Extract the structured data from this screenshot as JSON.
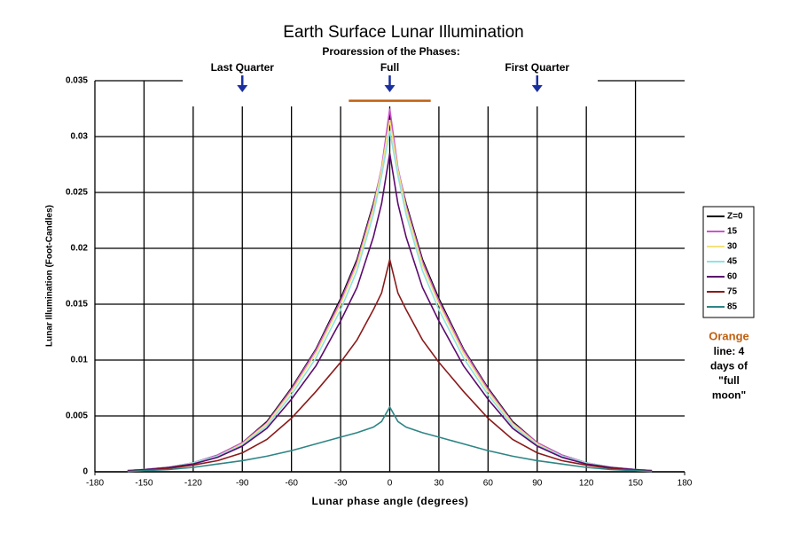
{
  "chart_data": {
    "type": "line",
    "title": "Earth Surface Lunar Illumination",
    "subtitle": "Progression of the Phases:",
    "x_label": "Lunar phase angle (degrees)",
    "y_label": "Lunar Illumination (Foot-Candles)",
    "xlim": [
      -180,
      180
    ],
    "xticks": [
      -180,
      -150,
      -120,
      -90,
      -60,
      -30,
      0,
      30,
      60,
      90,
      120,
      150,
      180
    ],
    "ylim": [
      0,
      0.035
    ],
    "yticks": [
      0,
      0.005,
      0.01,
      0.015,
      0.02,
      0.025,
      0.03,
      0.035
    ],
    "grid": true,
    "legend": "right",
    "x": [
      -160,
      -150,
      -135,
      -120,
      -105,
      -90,
      -75,
      -60,
      -45,
      -30,
      -20,
      -10,
      -5,
      0,
      5,
      10,
      20,
      30,
      45,
      60,
      75,
      90,
      105,
      120,
      135,
      150,
      160
    ],
    "series": [
      {
        "name": "Z=0",
        "color": "#000000",
        "values": [
          0.0001,
          0.0002,
          0.0004,
          0.0008,
          0.0015,
          0.0026,
          0.0045,
          0.0075,
          0.011,
          0.0155,
          0.019,
          0.024,
          0.027,
          0.032,
          0.027,
          0.024,
          0.019,
          0.0155,
          0.011,
          0.0075,
          0.0045,
          0.0026,
          0.0015,
          0.0008,
          0.0004,
          0.0002,
          0.0001
        ]
      },
      {
        "name": "15",
        "color": "#cc55cc",
        "values": [
          0.0001,
          0.0002,
          0.0004,
          0.0008,
          0.0015,
          0.0026,
          0.0044,
          0.0074,
          0.0109,
          0.0153,
          0.0188,
          0.0238,
          0.0272,
          0.0325,
          0.0272,
          0.0238,
          0.0188,
          0.0153,
          0.0109,
          0.0074,
          0.0044,
          0.0026,
          0.0015,
          0.0008,
          0.0004,
          0.0002,
          0.0001
        ]
      },
      {
        "name": "30",
        "color": "#f5e27a",
        "values": [
          0.0001,
          0.0002,
          0.0004,
          0.0008,
          0.0014,
          0.0025,
          0.0043,
          0.0072,
          0.0106,
          0.015,
          0.0185,
          0.0235,
          0.027,
          0.0315,
          0.027,
          0.0235,
          0.0185,
          0.015,
          0.0106,
          0.0072,
          0.0043,
          0.0025,
          0.0014,
          0.0008,
          0.0004,
          0.0002,
          0.0001
        ]
      },
      {
        "name": "45",
        "color": "#8fe3e3",
        "values": [
          0.0001,
          0.0002,
          0.0004,
          0.0008,
          0.0014,
          0.0024,
          0.0041,
          0.0069,
          0.0102,
          0.0145,
          0.018,
          0.023,
          0.0265,
          0.0305,
          0.0265,
          0.023,
          0.018,
          0.0145,
          0.0102,
          0.0069,
          0.0041,
          0.0024,
          0.0014,
          0.0008,
          0.0004,
          0.0002,
          0.0001
        ]
      },
      {
        "name": "60",
        "color": "#5c0a6e",
        "values": [
          0.0001,
          0.0002,
          0.0004,
          0.0007,
          0.0013,
          0.0023,
          0.0039,
          0.0065,
          0.0095,
          0.0135,
          0.0165,
          0.021,
          0.024,
          0.0285,
          0.024,
          0.021,
          0.0165,
          0.0135,
          0.0095,
          0.0065,
          0.0039,
          0.0023,
          0.0013,
          0.0007,
          0.0004,
          0.0002,
          0.0001
        ]
      },
      {
        "name": "75",
        "color": "#8b1a1a",
        "values": [
          5e-05,
          0.0001,
          0.0003,
          0.0006,
          0.001,
          0.0017,
          0.0029,
          0.0048,
          0.0072,
          0.0098,
          0.0118,
          0.0145,
          0.016,
          0.019,
          0.016,
          0.0145,
          0.0118,
          0.0098,
          0.0072,
          0.0048,
          0.0029,
          0.0017,
          0.001,
          0.0006,
          0.0003,
          0.0001,
          5e-05
        ]
      },
      {
        "name": "85",
        "color": "#2e8585",
        "values": [
          2e-05,
          0.0001,
          0.0002,
          0.0004,
          0.0007,
          0.001,
          0.0014,
          0.0019,
          0.0025,
          0.0031,
          0.0035,
          0.004,
          0.0045,
          0.0058,
          0.0045,
          0.004,
          0.0035,
          0.0031,
          0.0025,
          0.0019,
          0.0014,
          0.001,
          0.0007,
          0.0004,
          0.0002,
          0.0001,
          2e-05
        ]
      }
    ],
    "phase_markers": [
      {
        "label": "Last Quarter",
        "x": -90
      },
      {
        "label": "Full",
        "x": 0
      },
      {
        "label": "First Quarter",
        "x": 90
      }
    ],
    "marker_color": "#1a2fa0",
    "highlight": {
      "x": [
        -25,
        25
      ],
      "y": 0.0332,
      "color": "#c06010"
    },
    "note": {
      "highlight": "Orange",
      "lines": [
        "line: 4",
        "days of",
        "\"full",
        "moon\""
      ]
    }
  }
}
